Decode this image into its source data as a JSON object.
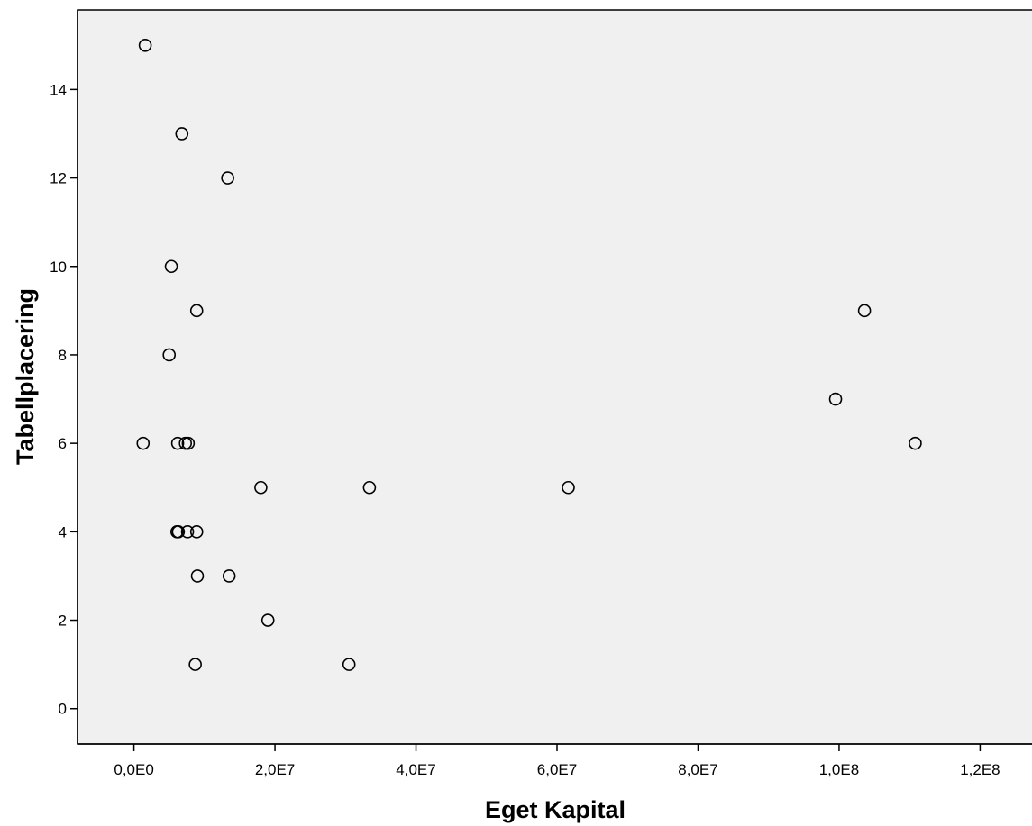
{
  "chart_data": {
    "type": "scatter",
    "title": "",
    "xlabel": "Eget Kapital",
    "ylabel": "Tabellplacering",
    "xlim": [
      -8000000,
      128000000
    ],
    "ylim": [
      -0.8,
      15.8
    ],
    "xticks": [
      0,
      20000000,
      40000000,
      60000000,
      80000000,
      100000000,
      120000000
    ],
    "xtick_labels": [
      "0,0E0",
      "2,0E7",
      "4,0E7",
      "6,0E7",
      "8,0E7",
      "1,0E8",
      "1,2E8"
    ],
    "yticks": [
      0,
      2,
      4,
      6,
      8,
      10,
      12,
      14
    ],
    "ytick_labels": [
      "0",
      "2",
      "4",
      "6",
      "8",
      "10",
      "12",
      "14"
    ],
    "grid": false,
    "marker": "open-circle",
    "colors": {
      "plot_background": "#f0f0f0",
      "marker_stroke": "#000000",
      "axis": "#000000"
    },
    "points": [
      {
        "x": 1600000,
        "y": 15
      },
      {
        "x": 6800000,
        "y": 13
      },
      {
        "x": 13300000,
        "y": 12
      },
      {
        "x": 5300000,
        "y": 10
      },
      {
        "x": 8900000,
        "y": 9
      },
      {
        "x": 5000000,
        "y": 8
      },
      {
        "x": 1300000,
        "y": 6
      },
      {
        "x": 6200000,
        "y": 6
      },
      {
        "x": 7300000,
        "y": 6
      },
      {
        "x": 7700000,
        "y": 6
      },
      {
        "x": 18000000,
        "y": 5
      },
      {
        "x": 33400000,
        "y": 5
      },
      {
        "x": 61600000,
        "y": 5
      },
      {
        "x": 6100000,
        "y": 4
      },
      {
        "x": 6300000,
        "y": 4
      },
      {
        "x": 7600000,
        "y": 4
      },
      {
        "x": 8900000,
        "y": 4
      },
      {
        "x": 9000000,
        "y": 3
      },
      {
        "x": 13500000,
        "y": 3
      },
      {
        "x": 19000000,
        "y": 2
      },
      {
        "x": 8700000,
        "y": 1
      },
      {
        "x": 30500000,
        "y": 1
      },
      {
        "x": 99500000,
        "y": 7
      },
      {
        "x": 103600000,
        "y": 9
      },
      {
        "x": 110800000,
        "y": 6
      }
    ]
  }
}
